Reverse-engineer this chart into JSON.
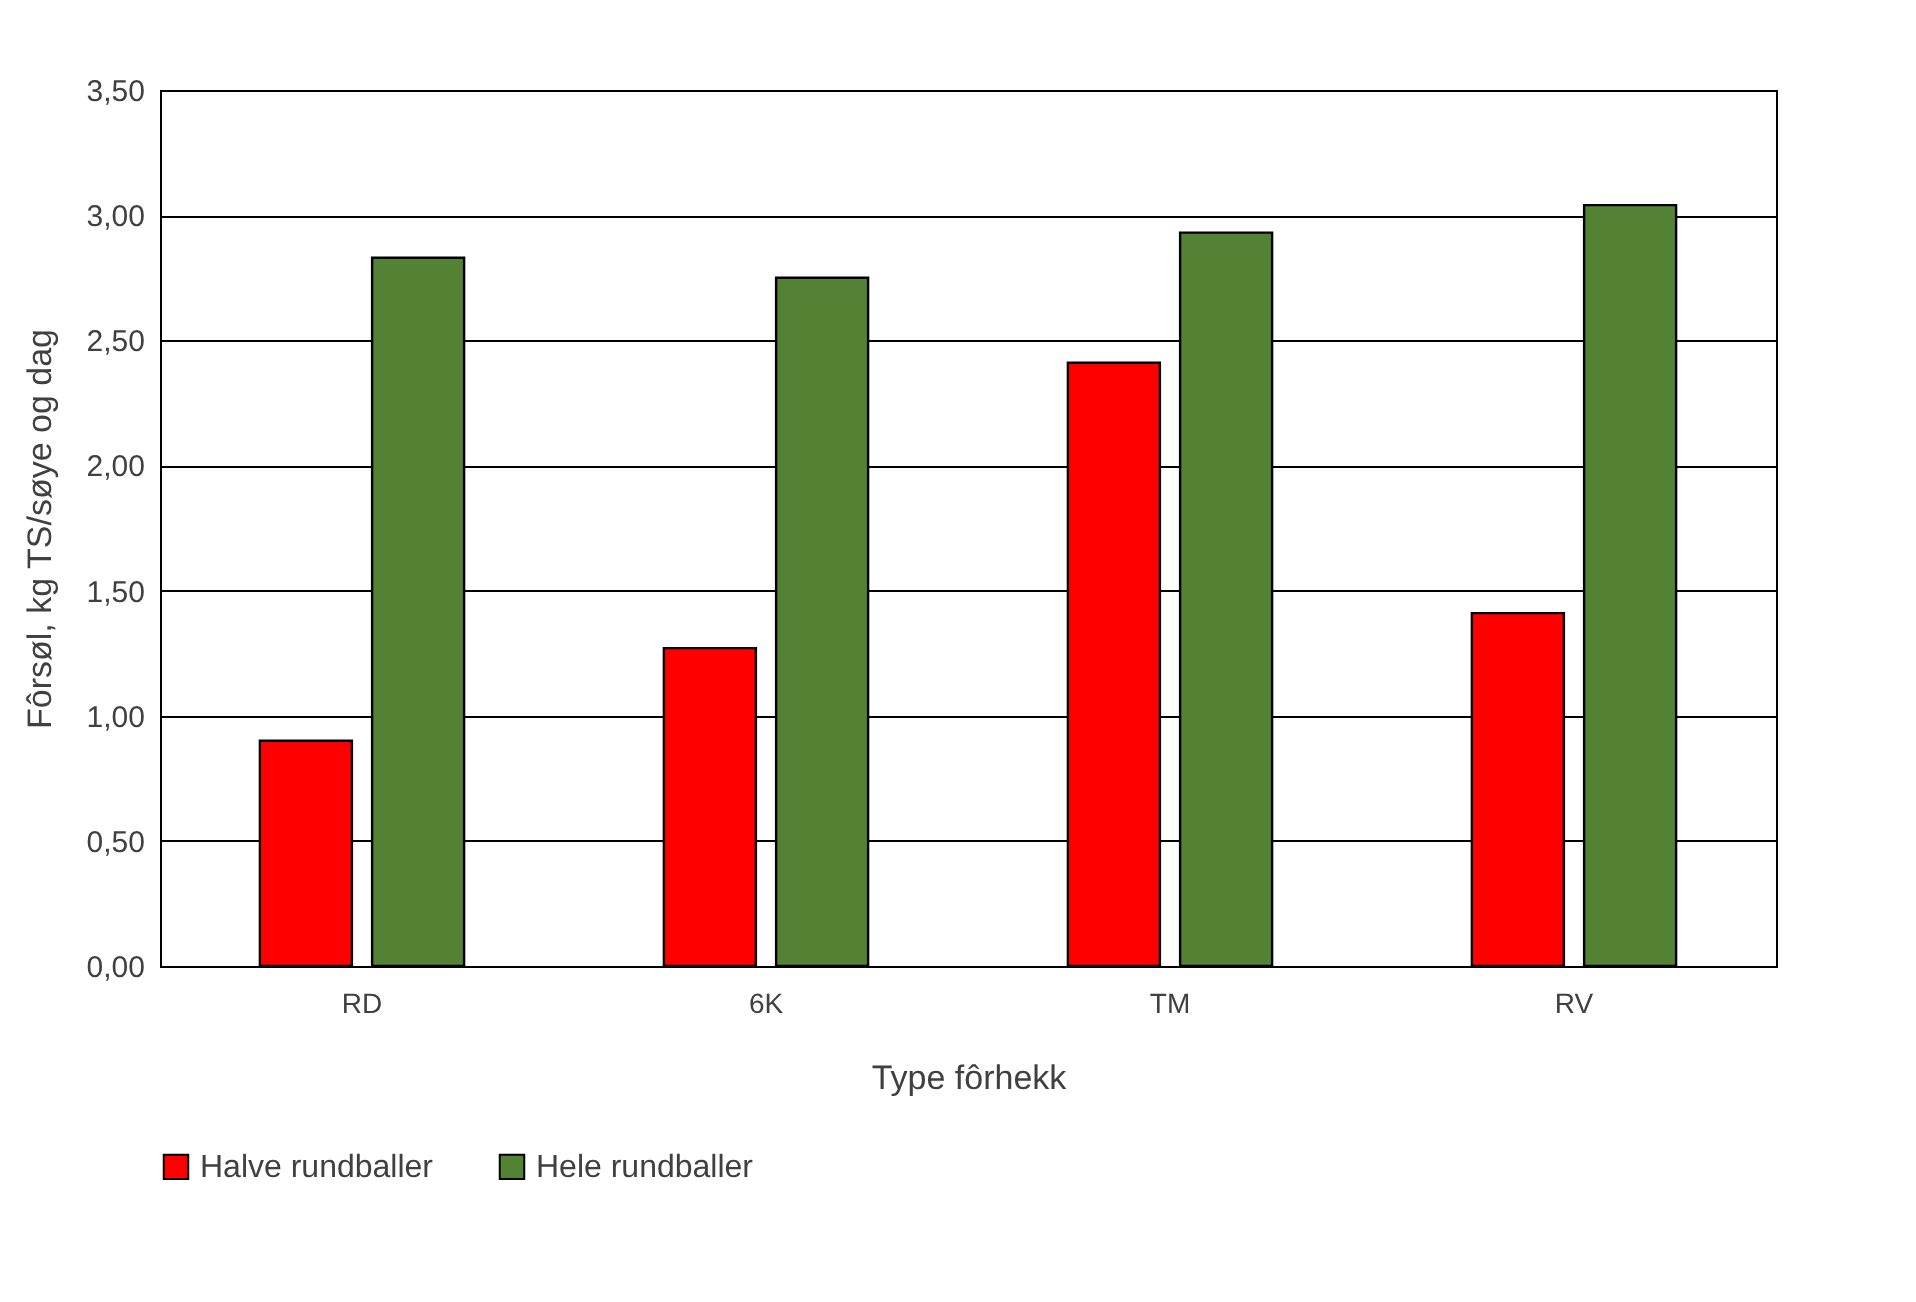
{
  "chart_data": {
    "type": "bar",
    "xlabel": "Type fôrhekk",
    "ylabel": "Fôrsøl, kg TS/søye og dag",
    "categories": [
      "RD",
      "6K",
      "TM",
      "RV"
    ],
    "series": [
      {
        "name": "Halve rundballer",
        "color": "#ff0000",
        "values": [
          0.9,
          1.27,
          2.41,
          1.41
        ]
      },
      {
        "name": "Hele rundballer",
        "color": "#548235",
        "values": [
          2.83,
          2.75,
          2.93,
          3.04
        ]
      }
    ],
    "ylim": [
      0,
      3.5
    ],
    "yticks": [
      {
        "value": 0,
        "label": "0,00"
      },
      {
        "value": 0.5,
        "label": "0,50"
      },
      {
        "value": 1,
        "label": "1,00"
      },
      {
        "value": 1.5,
        "label": "1,50"
      },
      {
        "value": 2,
        "label": "2,00"
      },
      {
        "value": 2.5,
        "label": "2,50"
      },
      {
        "value": 3,
        "label": "3,00"
      },
      {
        "value": 3.5,
        "label": "3,50"
      }
    ],
    "grid": "y",
    "legend": "bottom"
  }
}
